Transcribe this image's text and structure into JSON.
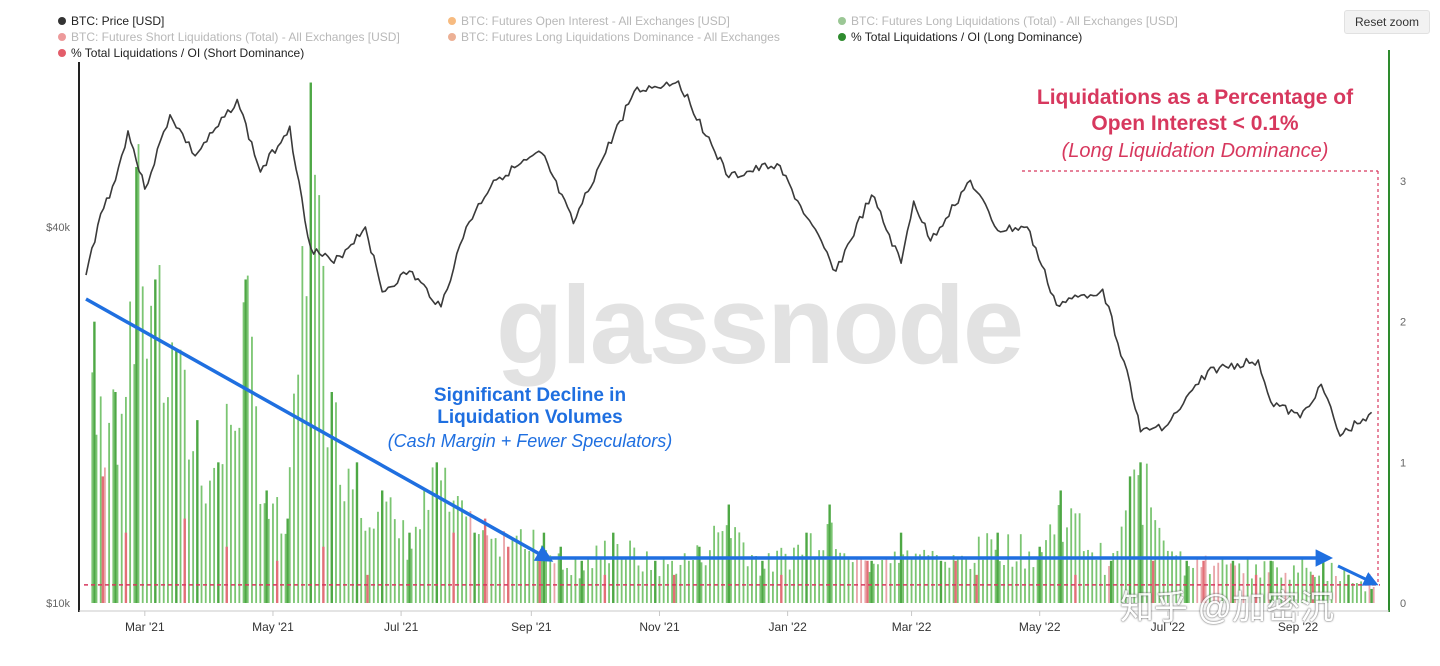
{
  "legend": {
    "items": [
      {
        "label": "BTC: Price [USD]",
        "color": "#333333",
        "active": true
      },
      {
        "label": "BTC: Futures Open Interest - All Exchanges [USD]",
        "color": "#f28e2b",
        "active": false
      },
      {
        "label": "BTC: Futures Long Liquidations (Total) - All Exchanges [USD]",
        "color": "#59a14f",
        "active": false
      },
      {
        "label": "BTC: Futures Short Liquidations (Total) - All Exchanges [USD]",
        "color": "#e15759",
        "active": false
      },
      {
        "label": "BTC: Futures Long Liquidations Dominance - All Exchanges",
        "color": "#e07b4f",
        "active": false
      },
      {
        "label": "% Total Liquidations / OI (Long Dominance)",
        "color": "#2e8b2e",
        "active": true
      },
      {
        "label": "% Total Liquidations / OI (Short Dominance)",
        "color": "#e35d6a",
        "active": true
      }
    ]
  },
  "toolbar": {
    "reset_zoom_label": "Reset zoom"
  },
  "watermark": "glassnode",
  "annotations": {
    "blue_line1": "Significant Decline in",
    "blue_line2": "Liquidation Volumes",
    "blue_line3": "(Cash Margin + Fewer Speculators)",
    "red_line1": "Liquidations as a Percentage of",
    "red_line2": "Open Interest < 0.1%",
    "red_line3": "(Long Liquidation Dominance)"
  },
  "credit": "知乎 @加密沉",
  "chart_data": {
    "type": "bar",
    "x_range": [
      "2021-02-01",
      "2022-10-10"
    ],
    "x_ticks": [
      {
        "date": "2021-03-01",
        "label": "Mar '21"
      },
      {
        "date": "2021-05-01",
        "label": "May '21"
      },
      {
        "date": "2021-07-01",
        "label": "Jul '21"
      },
      {
        "date": "2021-09-01",
        "label": "Sep '21"
      },
      {
        "date": "2021-11-01",
        "label": "Nov '21"
      },
      {
        "date": "2022-01-01",
        "label": "Jan '22"
      },
      {
        "date": "2022-03-01",
        "label": "Mar '22"
      },
      {
        "date": "2022-05-01",
        "label": "May '22"
      },
      {
        "date": "2022-07-01",
        "label": "Jul '22"
      },
      {
        "date": "2022-09-01",
        "label": "Sep '22"
      }
    ],
    "left_axis": {
      "scale": "log",
      "ticks": [
        {
          "value": 10000,
          "label": "$10k"
        },
        {
          "value": 40000,
          "label": "$40k"
        }
      ],
      "range": [
        10000,
        80000
      ]
    },
    "right_axis": {
      "ticks": [
        0,
        1,
        2,
        3
      ],
      "range": [
        0,
        3.8
      ]
    },
    "grid": false,
    "legend_position": "top-left",
    "threshold": {
      "value": 0.1,
      "label": "Liquidations as a Percentage of Open Interest < 0.1%"
    },
    "series": [
      {
        "name": "BTC: Price [USD]",
        "type": "line",
        "axis": "left",
        "points": [
          [
            "2021-02-01",
            33500
          ],
          [
            "2021-02-08",
            42000
          ],
          [
            "2021-02-15",
            47500
          ],
          [
            "2021-02-21",
            57000
          ],
          [
            "2021-03-01",
            46000
          ],
          [
            "2021-03-13",
            60500
          ],
          [
            "2021-03-25",
            52000
          ],
          [
            "2021-04-05",
            58000
          ],
          [
            "2021-04-14",
            64000
          ],
          [
            "2021-04-25",
            49000
          ],
          [
            "2021-05-09",
            58000
          ],
          [
            "2021-05-12",
            49500
          ],
          [
            "2021-05-19",
            37000
          ],
          [
            "2021-05-30",
            35000
          ],
          [
            "2021-06-14",
            40000
          ],
          [
            "2021-06-22",
            31500
          ],
          [
            "2021-07-05",
            34000
          ],
          [
            "2021-07-20",
            29800
          ],
          [
            "2021-08-01",
            40000
          ],
          [
            "2021-08-14",
            47500
          ],
          [
            "2021-09-06",
            52500
          ],
          [
            "2021-09-21",
            40500
          ],
          [
            "2021-10-05",
            51500
          ],
          [
            "2021-10-20",
            66000
          ],
          [
            "2021-11-10",
            68500
          ],
          [
            "2021-11-26",
            54000
          ],
          [
            "2021-12-04",
            48000
          ],
          [
            "2021-12-27",
            50500
          ],
          [
            "2022-01-10",
            41500
          ],
          [
            "2022-01-24",
            34000
          ],
          [
            "2022-02-10",
            45000
          ],
          [
            "2022-02-24",
            35000
          ],
          [
            "2022-03-02",
            44000
          ],
          [
            "2022-03-10",
            38000
          ],
          [
            "2022-03-29",
            47500
          ],
          [
            "2022-04-11",
            39500
          ],
          [
            "2022-04-25",
            40000
          ],
          [
            "2022-05-09",
            30000
          ],
          [
            "2022-05-31",
            31800
          ],
          [
            "2022-06-13",
            22500
          ],
          [
            "2022-06-18",
            18800
          ],
          [
            "2022-07-01",
            19300
          ],
          [
            "2022-07-20",
            23500
          ],
          [
            "2022-08-13",
            24500
          ],
          [
            "2022-08-19",
            21000
          ],
          [
            "2022-09-02",
            19800
          ],
          [
            "2022-09-12",
            22400
          ],
          [
            "2022-09-21",
            18500
          ],
          [
            "2022-10-06",
            20200
          ]
        ]
      },
      {
        "name": "% Total Liquidations / OI (Long Dominance)",
        "type": "bar",
        "axis": "right",
        "points": [
          [
            "2021-02-05",
            2.0
          ],
          [
            "2021-02-15",
            1.5
          ],
          [
            "2021-02-25",
            3.1
          ],
          [
            "2021-03-06",
            2.3
          ],
          [
            "2021-03-16",
            1.8
          ],
          [
            "2021-03-26",
            1.3
          ],
          [
            "2021-04-05",
            1.0
          ],
          [
            "2021-04-18",
            2.3
          ],
          [
            "2021-04-28",
            0.8
          ],
          [
            "2021-05-08",
            0.6
          ],
          [
            "2021-05-19",
            3.7
          ],
          [
            "2021-05-29",
            1.5
          ],
          [
            "2021-06-10",
            1.0
          ],
          [
            "2021-06-22",
            0.8
          ],
          [
            "2021-07-05",
            0.5
          ],
          [
            "2021-07-18",
            1.0
          ],
          [
            "2021-08-05",
            0.5
          ],
          [
            "2021-09-07",
            0.5
          ],
          [
            "2021-09-15",
            0.4
          ],
          [
            "2021-09-25",
            0.3
          ],
          [
            "2021-10-10",
            0.5
          ],
          [
            "2021-10-30",
            0.3
          ],
          [
            "2021-11-20",
            0.4
          ],
          [
            "2021-12-04",
            0.7
          ],
          [
            "2021-12-20",
            0.3
          ],
          [
            "2022-01-10",
            0.5
          ],
          [
            "2022-01-21",
            0.7
          ],
          [
            "2022-02-10",
            0.3
          ],
          [
            "2022-02-24",
            0.5
          ],
          [
            "2022-03-15",
            0.3
          ],
          [
            "2022-04-11",
            0.5
          ],
          [
            "2022-05-01",
            0.4
          ],
          [
            "2022-05-11",
            0.8
          ],
          [
            "2022-06-04",
            0.3
          ],
          [
            "2022-06-13",
            0.9
          ],
          [
            "2022-06-18",
            1.0
          ],
          [
            "2022-07-10",
            0.3
          ],
          [
            "2022-08-01",
            0.3
          ],
          [
            "2022-08-19",
            0.3
          ],
          [
            "2022-09-13",
            0.3
          ],
          [
            "2022-09-25",
            0.2
          ],
          [
            "2022-10-06",
            0.1
          ]
        ]
      },
      {
        "name": "% Total Liquidations / OI (Short Dominance)",
        "type": "bar",
        "axis": "right",
        "points": [
          [
            "2021-02-09",
            0.9
          ],
          [
            "2021-02-20",
            0.5
          ],
          [
            "2021-03-20",
            0.6
          ],
          [
            "2021-04-09",
            0.4
          ],
          [
            "2021-05-03",
            0.3
          ],
          [
            "2021-05-25",
            0.4
          ],
          [
            "2021-06-15",
            0.2
          ],
          [
            "2021-07-26",
            0.5
          ],
          [
            "2021-08-10",
            0.6
          ],
          [
            "2021-08-21",
            0.4
          ],
          [
            "2021-09-05",
            0.3
          ],
          [
            "2021-10-06",
            0.2
          ],
          [
            "2021-11-08",
            0.2
          ],
          [
            "2021-12-29",
            0.2
          ],
          [
            "2022-02-08",
            0.3
          ],
          [
            "2022-03-22",
            0.3
          ],
          [
            "2022-04-01",
            0.2
          ],
          [
            "2022-05-18",
            0.2
          ],
          [
            "2022-06-24",
            0.3
          ],
          [
            "2022-07-18",
            0.3
          ],
          [
            "2022-08-12",
            0.2
          ],
          [
            "2022-09-08",
            0.2
          ]
        ]
      }
    ]
  }
}
